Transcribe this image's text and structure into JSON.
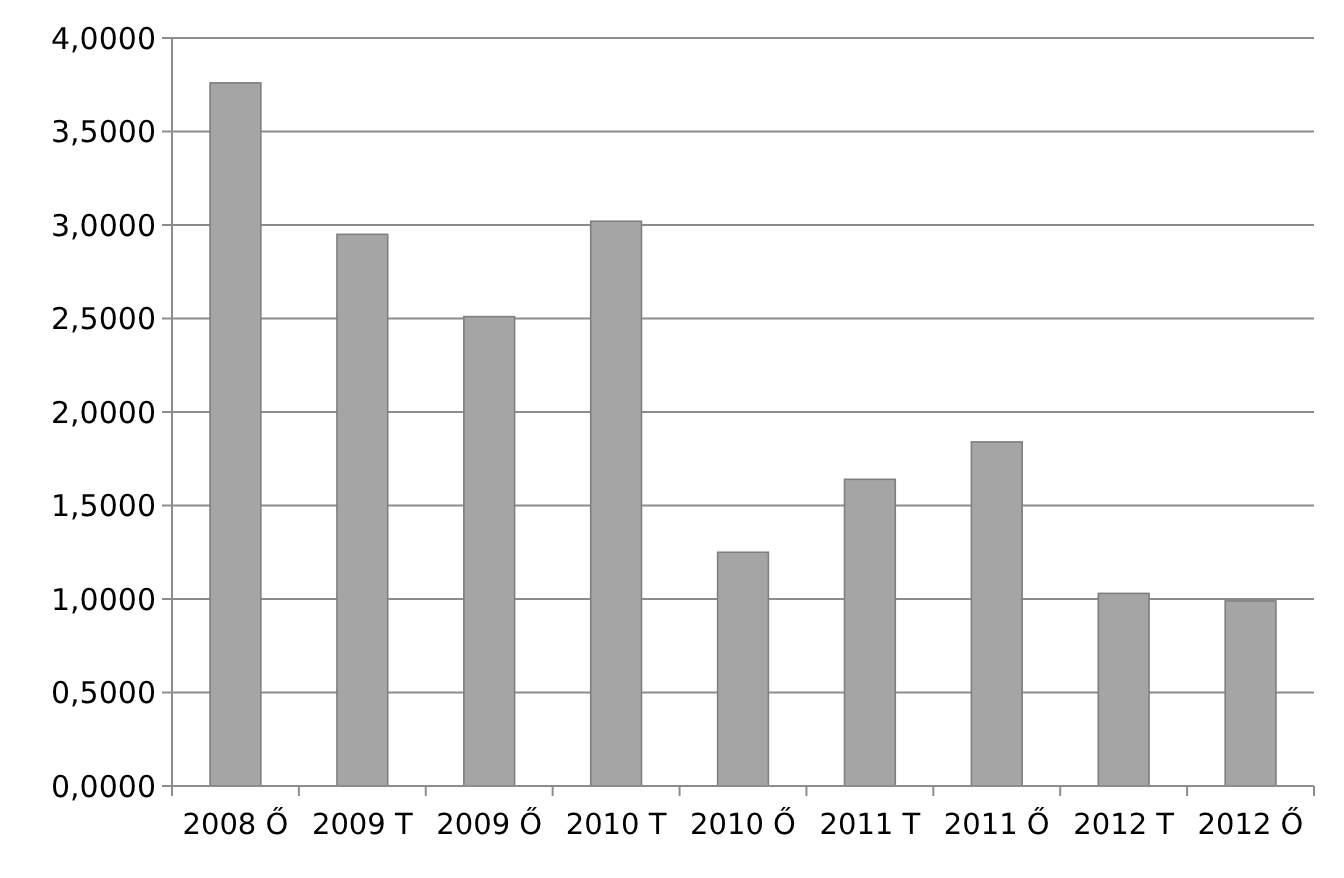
{
  "chart_data": {
    "type": "bar",
    "categories": [
      "2008 Ő",
      "2009 T",
      "2009 Ő",
      "2010 T",
      "2010 Ő",
      "2011 T",
      "2011 Ő",
      "2012 T",
      "2012 Ő"
    ],
    "values": [
      3.76,
      2.95,
      2.51,
      3.02,
      1.25,
      1.64,
      1.84,
      1.03,
      0.99
    ],
    "color": "#a5a5a5",
    "ylim": [
      0,
      4
    ],
    "yticks": [
      {
        "value": 0,
        "label": "0,0000"
      },
      {
        "value": 0.5,
        "label": "0,5000"
      },
      {
        "value": 1,
        "label": "1,0000"
      },
      {
        "value": 1.5,
        "label": "1,5000"
      },
      {
        "value": 2,
        "label": "2,0000"
      },
      {
        "value": 2.5,
        "label": "2,5000"
      },
      {
        "value": 3,
        "label": "3,0000"
      },
      {
        "value": 3.5,
        "label": "3,5000"
      },
      {
        "value": 4,
        "label": "4,0000"
      }
    ],
    "grid": "y"
  }
}
